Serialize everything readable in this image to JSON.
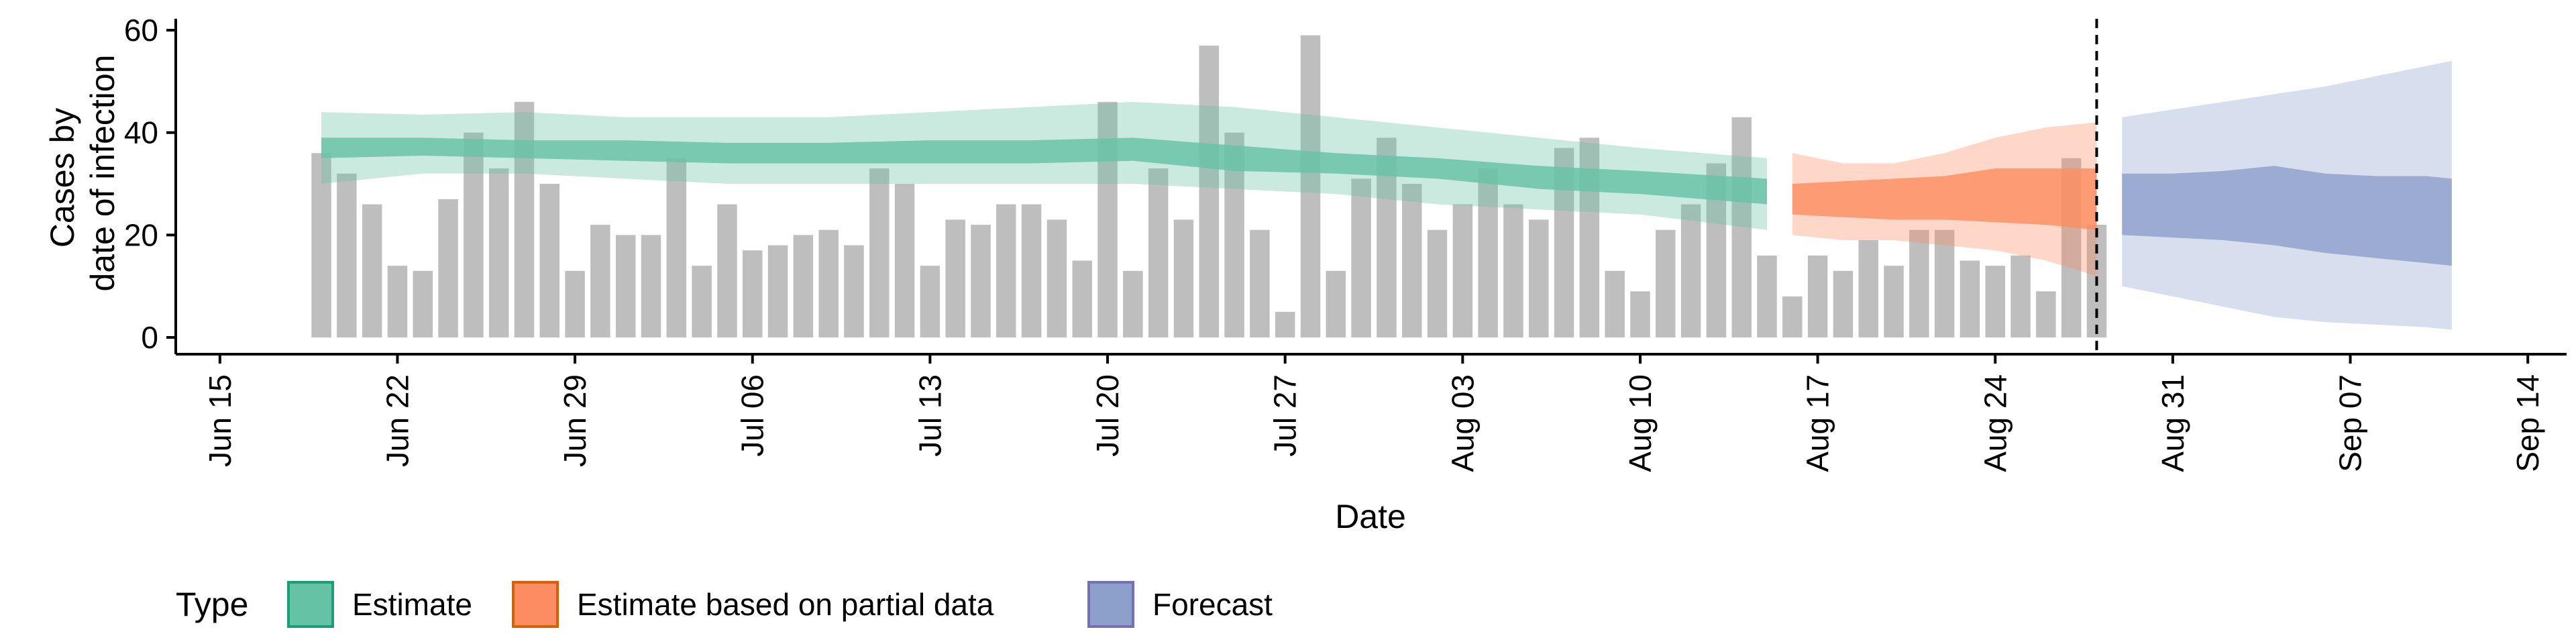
{
  "chart_data": {
    "type": "bar",
    "xlabel": "Date",
    "ylabel_lines": [
      "Cases by",
      "date of infection"
    ],
    "ylim": [
      0,
      60
    ],
    "yticks": [
      0,
      20,
      40,
      60
    ],
    "xlim": [
      "2020-06-14",
      "2020-09-15"
    ],
    "xticks": [
      {
        "date": "2020-06-15",
        "label": "Jun 15"
      },
      {
        "date": "2020-06-22",
        "label": "Jun 22"
      },
      {
        "date": "2020-06-29",
        "label": "Jun 29"
      },
      {
        "date": "2020-07-06",
        "label": "Jul 06"
      },
      {
        "date": "2020-07-13",
        "label": "Jul 13"
      },
      {
        "date": "2020-07-20",
        "label": "Jul 20"
      },
      {
        "date": "2020-07-27",
        "label": "Jul 27"
      },
      {
        "date": "2020-08-03",
        "label": "Aug 03"
      },
      {
        "date": "2020-08-10",
        "label": "Aug 10"
      },
      {
        "date": "2020-08-17",
        "label": "Aug 17"
      },
      {
        "date": "2020-08-24",
        "label": "Aug 24"
      },
      {
        "date": "2020-08-31",
        "label": "Aug 31"
      },
      {
        "date": "2020-09-07",
        "label": "Sep 07"
      },
      {
        "date": "2020-09-14",
        "label": "Sep 14"
      }
    ],
    "bar_color": "#bebebe",
    "bars": {
      "start_date": "2020-06-19",
      "values": [
        36,
        32,
        26,
        14,
        13,
        27,
        40,
        33,
        46,
        30,
        13,
        22,
        20,
        20,
        35,
        14,
        26,
        17,
        18,
        20,
        21,
        18,
        33,
        30,
        14,
        23,
        22,
        26,
        26,
        23,
        15,
        46,
        13,
        33,
        23,
        57,
        40,
        21,
        5,
        59,
        13,
        31,
        39,
        30,
        21,
        26,
        33,
        26,
        23,
        37,
        39,
        13,
        9,
        21,
        26,
        34,
        43,
        16,
        8,
        16,
        13,
        19,
        14,
        21,
        21,
        15,
        14,
        16,
        9,
        35,
        22
      ]
    },
    "now_line_date": "2020-08-28",
    "bands": [
      {
        "name": "Estimate",
        "color": "#66c2a5",
        "dates": [
          "2020-06-19",
          "2020-06-23",
          "2020-06-27",
          "2020-07-01",
          "2020-07-05",
          "2020-07-09",
          "2020-07-13",
          "2020-07-17",
          "2020-07-21",
          "2020-07-25",
          "2020-07-29",
          "2020-08-02",
          "2020-08-06",
          "2020-08-10",
          "2020-08-15"
        ],
        "lower90": [
          30,
          32,
          32,
          31,
          30,
          30,
          30,
          30,
          30,
          29,
          28,
          26,
          25,
          24,
          21
        ],
        "lower50": [
          35,
          35.5,
          35,
          34.5,
          34,
          34,
          34,
          34,
          34.5,
          32.5,
          32,
          31,
          29,
          28,
          26
        ],
        "upper50": [
          39,
          39,
          38.5,
          38.5,
          38,
          38,
          38.5,
          38.5,
          39,
          37.5,
          36,
          35,
          33.5,
          32.5,
          31
        ],
        "upper90": [
          44,
          43.5,
          44,
          43,
          43,
          43,
          44,
          45,
          46,
          45,
          43,
          41,
          39,
          37,
          35
        ]
      },
      {
        "name": "Estimate based on partial data",
        "color": "#fc8d62",
        "dates": [
          "2020-08-16",
          "2020-08-18",
          "2020-08-20",
          "2020-08-22",
          "2020-08-24",
          "2020-08-26",
          "2020-08-28"
        ],
        "lower90": [
          20,
          19,
          19,
          18,
          17,
          15,
          12
        ],
        "lower50": [
          24,
          23.5,
          23,
          23,
          22.5,
          22,
          21
        ],
        "upper50": [
          30,
          30.5,
          31,
          31.5,
          33,
          33,
          33
        ],
        "upper90": [
          36,
          34,
          34,
          36,
          39,
          41,
          42
        ]
      },
      {
        "name": "Forecast",
        "color": "#8da0cb",
        "dates": [
          "2020-08-29",
          "2020-08-31",
          "2020-09-02",
          "2020-09-04",
          "2020-09-06",
          "2020-09-08",
          "2020-09-10",
          "2020-09-11"
        ],
        "lower90": [
          10,
          8,
          6,
          4,
          3,
          2.5,
          2,
          1.5
        ],
        "lower50": [
          20,
          19.5,
          19,
          18,
          16.5,
          15.5,
          14.5,
          14
        ],
        "upper50": [
          32,
          32,
          32.5,
          33.5,
          32,
          31.5,
          31.5,
          31
        ],
        "upper90": [
          43,
          44.5,
          46,
          47.5,
          49,
          51,
          53,
          54
        ]
      }
    ],
    "legend": {
      "title": "Type",
      "position": "bottom-left",
      "entries": [
        {
          "label": "Estimate",
          "fill": "#66c2a5",
          "stroke": "#1b9e77"
        },
        {
          "label": "Estimate based on partial data",
          "fill": "#fc8d62",
          "stroke": "#d95f02"
        },
        {
          "label": "Forecast",
          "fill": "#8da0cb",
          "stroke": "#7570b3"
        }
      ]
    }
  }
}
